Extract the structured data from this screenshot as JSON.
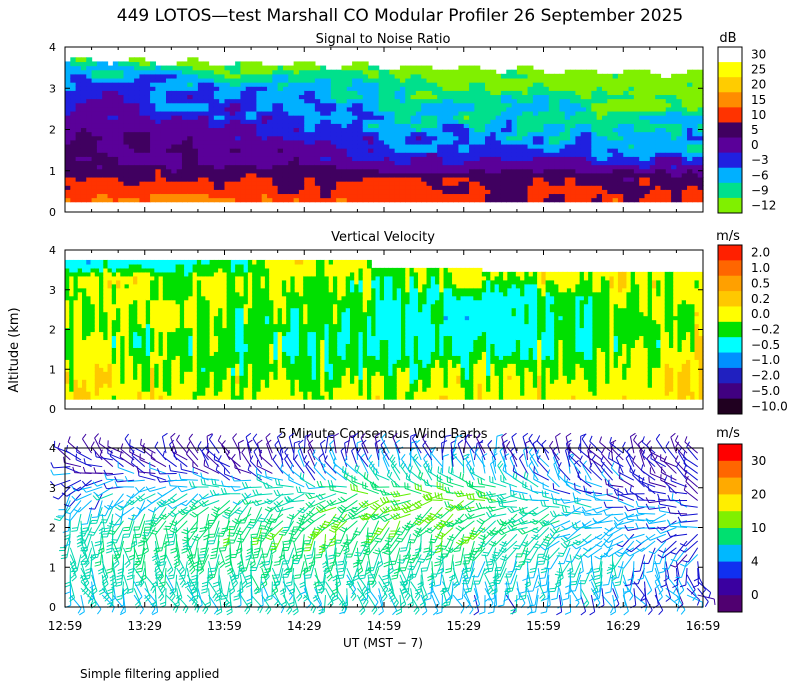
{
  "title": "449 LOTOS—test Marshall CO Modular Profiler 26 September 2025",
  "ylabel": "Altitude (km)",
  "xlabel": "UT  (MST − 7)",
  "footnote": "Simple filtering applied",
  "time_ticks": [
    "12:59",
    "13:29",
    "13:59",
    "14:29",
    "14:59",
    "15:29",
    "15:59",
    "16:29",
    "16:59"
  ],
  "altitude_ticks": [
    "0",
    "1",
    "2",
    "3",
    "4"
  ],
  "chart_data": [
    {
      "type": "heatmap",
      "title": "Signal to Noise Ratio",
      "units": "dB",
      "x_range_ut": [
        "12:59",
        "16:59"
      ],
      "ylim_km": [
        0,
        4
      ],
      "colorbar": {
        "labels": [
          "30",
          "25",
          "20",
          "15",
          "10",
          "5",
          "0",
          "−3",
          "−6",
          "−9",
          "−12"
        ],
        "colors": [
          "#ffffff",
          "#ffff00",
          "#ffcc00",
          "#ff8c00",
          "#ff3300",
          "#400060",
          "#5a0099",
          "#2020e0",
          "#00b0ff",
          "#00e08c",
          "#80f000"
        ]
      },
      "profile_levels_km": [
        0.3,
        0.6,
        0.9,
        1.2,
        1.5,
        1.8,
        2.1,
        2.4,
        2.7,
        3.0,
        3.3,
        3.6,
        3.9
      ],
      "time_nodes_hr": [
        12.98,
        13.5,
        14.0,
        14.5,
        15.0,
        15.5,
        16.0,
        16.5,
        16.98
      ],
      "snr_db": [
        [
          14,
          14,
          14,
          13,
          13,
          12,
          11,
          12,
          12
        ],
        [
          12,
          12,
          12,
          11,
          11,
          10,
          10,
          10,
          10
        ],
        [
          10,
          9,
          8,
          8,
          7,
          7,
          7,
          7,
          6
        ],
        [
          7,
          5,
          4,
          3,
          2,
          1,
          0,
          0,
          -1
        ],
        [
          6,
          4,
          3,
          2,
          -1,
          -2,
          -3,
          -3,
          -4
        ],
        [
          5,
          3,
          2,
          0,
          -3,
          -3,
          -4,
          -4,
          -5
        ],
        [
          3,
          2,
          1,
          -2,
          -4,
          -5,
          -6,
          -6,
          -7
        ],
        [
          2,
          0,
          -1,
          -3,
          -5,
          -6,
          -7,
          -7,
          -8
        ],
        [
          1,
          -1,
          -2,
          -4,
          -6,
          -7,
          -8,
          -10,
          -10
        ],
        [
          -1,
          -2,
          -3,
          -5,
          -7,
          -9,
          -10,
          -11,
          -12
        ],
        [
          -3,
          -5,
          -6,
          -7,
          -9,
          -11,
          -12,
          -12,
          -12
        ],
        [
          -7,
          -9,
          -10,
          -11,
          -12,
          -12,
          -12,
          -12,
          -12
        ],
        [
          -12,
          -12,
          -12,
          -12,
          -12,
          -12,
          -12,
          -12,
          -12
        ]
      ]
    },
    {
      "type": "heatmap",
      "title": "Vertical Velocity",
      "units": "m/s",
      "x_range_ut": [
        "12:59",
        "16:59"
      ],
      "ylim_km": [
        0,
        4
      ],
      "colorbar": {
        "labels": [
          "2.0",
          "1.0",
          "0.5",
          "0.2",
          "0.0",
          "−0.2",
          "−0.5",
          "−1.0",
          "−2.0",
          "−5.0",
          "−10.0"
        ],
        "colors": [
          "#ff2000",
          "#ff6600",
          "#ffa000",
          "#ffc800",
          "#ffff00",
          "#00e000",
          "#00ffff",
          "#0090ff",
          "#2020c0",
          "#400080",
          "#200020"
        ]
      },
      "profile_levels_km": [
        0.3,
        0.8,
        1.3,
        1.8,
        2.3,
        2.8,
        3.3,
        3.8
      ],
      "time_nodes_hr": [
        12.98,
        13.5,
        14.0,
        14.5,
        15.0,
        15.5,
        16.0,
        16.5,
        16.98
      ],
      "velocity_ms": [
        [
          0.15,
          0.1,
          0.1,
          0.05,
          0.0,
          0.1,
          0.1,
          0.15,
          0.2
        ],
        [
          0.1,
          0.05,
          0.0,
          0.0,
          -0.1,
          0.0,
          0.05,
          0.1,
          0.15
        ],
        [
          0.0,
          0.0,
          -0.1,
          -0.1,
          -0.2,
          -0.15,
          -0.1,
          0.0,
          0.1
        ],
        [
          0.0,
          -0.1,
          -0.1,
          -0.2,
          -0.2,
          -0.3,
          -0.2,
          -0.1,
          0.05
        ],
        [
          0.05,
          0.0,
          -0.1,
          -0.1,
          -0.2,
          -0.4,
          -0.3,
          -0.1,
          0.0
        ],
        [
          0.05,
          0.0,
          0.0,
          -0.1,
          -0.1,
          -0.3,
          -0.2,
          0.0,
          0.1
        ],
        [
          0.1,
          0.05,
          0.0,
          0.0,
          -0.1,
          0.0,
          0.1,
          0.1,
          0.1
        ],
        [
          -0.5,
          -0.4,
          -0.3,
          0.1,
          0.05,
          0.1,
          0.1,
          0.1,
          0.1
        ]
      ]
    },
    {
      "type": "wind_barbs",
      "title": "5 Minute Consensus Wind Barbs",
      "units": "m/s",
      "x_range_ut": [
        "12:59",
        "16:59"
      ],
      "ylim_km": [
        0,
        4
      ],
      "colorbar": {
        "labels": [
          "30",
          "20",
          "10",
          "4",
          "0"
        ],
        "colors": [
          "#ff0000",
          "#ff6600",
          "#ffaa00",
          "#ffee00",
          "#80f000",
          "#00e070",
          "#00b8ff",
          "#1030f0",
          "#3a00a0",
          "#500070"
        ]
      },
      "profile_levels_km": [
        0.3,
        0.8,
        1.3,
        1.8,
        2.3,
        2.8,
        3.3,
        3.8
      ],
      "time_nodes_hr": [
        12.98,
        13.5,
        14.0,
        14.5,
        15.0,
        15.5,
        16.0,
        16.5,
        16.98
      ],
      "speed_ms": [
        [
          5,
          6,
          6,
          6,
          6,
          5,
          5,
          4,
          3
        ],
        [
          6,
          7,
          7,
          7,
          7,
          6,
          6,
          5,
          3
        ],
        [
          7,
          8,
          8,
          8,
          8,
          7,
          7,
          5,
          3
        ],
        [
          7,
          8,
          9,
          9,
          9,
          9,
          7,
          5,
          3
        ],
        [
          6,
          8,
          9,
          9,
          10,
          10,
          8,
          4,
          3
        ],
        [
          4,
          6,
          7,
          8,
          10,
          11,
          6,
          3,
          3
        ],
        [
          3,
          3,
          3,
          4,
          6,
          6,
          4,
          3,
          2
        ],
        [
          2,
          2,
          2,
          3,
          3,
          3,
          3,
          2,
          2
        ]
      ],
      "direction_deg": [
        [
          150,
          155,
          160,
          160,
          165,
          165,
          170,
          150,
          120
        ],
        [
          160,
          165,
          170,
          170,
          170,
          175,
          180,
          170,
          150
        ],
        [
          170,
          175,
          180,
          180,
          185,
          190,
          190,
          200,
          200
        ],
        [
          180,
          185,
          190,
          190,
          200,
          210,
          230,
          240,
          250
        ],
        [
          190,
          200,
          210,
          220,
          230,
          240,
          250,
          260,
          260
        ],
        [
          210,
          230,
          240,
          250,
          260,
          260,
          270,
          280,
          300
        ],
        [
          260,
          280,
          300,
          320,
          330,
          340,
          330,
          320,
          300
        ],
        [
          300,
          320,
          340,
          350,
          350,
          350,
          340,
          330,
          310
        ]
      ]
    }
  ]
}
